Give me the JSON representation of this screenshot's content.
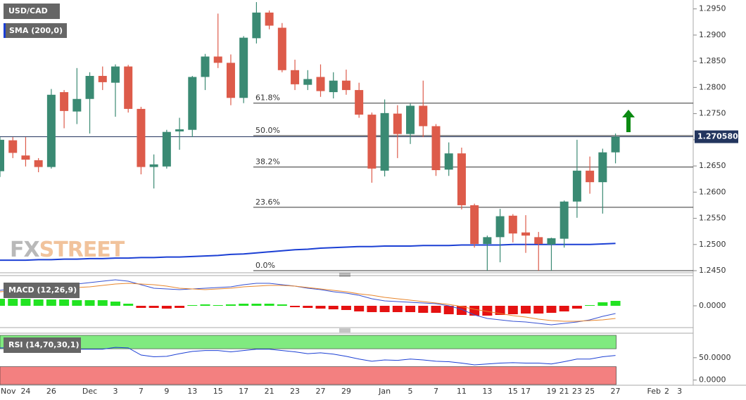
{
  "chart_data": [
    {
      "type": "candlestick",
      "title": "USD/CAD",
      "categories": [
        "Nov",
        null,
        "24",
        null,
        "26",
        null,
        null,
        "Dec",
        null,
        "3",
        null,
        "7",
        null,
        "9",
        null,
        "13",
        null,
        "15",
        null,
        "17",
        null,
        "21",
        null,
        "23",
        null,
        "27",
        null,
        "29",
        null,
        null,
        "Jan",
        null,
        "5",
        null,
        "7",
        null,
        "11",
        null,
        "13",
        null,
        "15",
        "17",
        null,
        "19",
        "21",
        "23",
        "25",
        null,
        "27",
        null,
        null,
        "Feb",
        "2",
        "3"
      ],
      "open": [
        1.264,
        1.2699,
        1.267,
        1.2661,
        1.2648,
        1.2791,
        1.2754,
        1.2778,
        1.2822,
        1.2809,
        1.284,
        1.2759,
        1.2648,
        1.2649,
        1.2716,
        1.2719,
        1.282,
        1.2859,
        1.2847,
        1.278,
        1.2894,
        1.2943,
        1.2914,
        1.2833,
        1.2805,
        1.282,
        1.2791,
        1.2813,
        1.2795,
        1.2748,
        1.2641,
        1.275,
        1.2711,
        1.2765,
        1.2726,
        1.2643,
        1.2674,
        1.2575,
        1.2501,
        1.2514,
        1.2555,
        1.2523,
        1.2514,
        1.25,
        1.2511,
        1.2582,
        1.2641,
        1.2619,
        1.2676,
        null,
        null,
        null,
        null,
        null
      ],
      "high": [
        1.2705,
        1.2705,
        1.2705,
        1.2665,
        1.2797,
        1.2795,
        1.2837,
        1.2829,
        1.284,
        1.2844,
        1.2843,
        1.2763,
        1.2672,
        1.2719,
        1.2742,
        1.2822,
        1.2864,
        1.2941,
        1.2863,
        1.2898,
        1.2963,
        1.2947,
        1.2923,
        1.2853,
        1.2833,
        1.2844,
        1.2829,
        1.2834,
        1.2809,
        1.2752,
        1.2777,
        1.2766,
        1.2769,
        1.2813,
        1.273,
        1.2695,
        1.2685,
        1.2578,
        1.2517,
        1.2568,
        1.2558,
        1.2556,
        1.2524,
        1.2513,
        1.2584,
        1.27,
        1.2668,
        1.2683,
        1.2712,
        null,
        null,
        null,
        null,
        null
      ],
      "low": [
        1.2629,
        1.2665,
        1.2649,
        1.2638,
        1.2645,
        1.2722,
        1.273,
        1.2712,
        1.2795,
        1.2744,
        1.2752,
        1.2634,
        1.2607,
        1.2645,
        1.2681,
        1.2705,
        1.2795,
        1.2837,
        1.2766,
        1.277,
        1.2884,
        1.2911,
        1.2829,
        1.2795,
        1.2795,
        1.2782,
        1.2779,
        1.2786,
        1.2742,
        1.2618,
        1.263,
        1.2665,
        1.2692,
        1.2705,
        1.2631,
        1.2631,
        1.2567,
        1.2494,
        1.245,
        1.2466,
        1.2504,
        1.2484,
        1.245,
        1.245,
        1.2494,
        1.2551,
        1.2597,
        1.2559,
        1.2655,
        null,
        null,
        null,
        null,
        null
      ],
      "close": [
        1.27,
        1.2675,
        1.2662,
        1.2648,
        1.2786,
        1.2755,
        1.2778,
        1.2822,
        1.281,
        1.284,
        1.2759,
        1.2648,
        1.2653,
        1.2715,
        1.272,
        1.282,
        1.2859,
        1.2847,
        1.278,
        1.2895,
        1.2943,
        1.2918,
        1.2833,
        1.2806,
        1.2816,
        1.2793,
        1.2813,
        1.2795,
        1.2748,
        1.2645,
        1.2751,
        1.2711,
        1.2765,
        1.2726,
        1.2642,
        1.2674,
        1.2575,
        1.2501,
        1.2514,
        1.2554,
        1.2521,
        1.2517,
        1.2501,
        1.2512,
        1.2582,
        1.2641,
        1.2619,
        1.2676,
        1.2706,
        null,
        null,
        null,
        null,
        null
      ],
      "up_color": "#3a8a73",
      "down_color": "#dd5b4a",
      "series": [
        {
          "name": "SMA (200,0)",
          "color": "#1b3fd4",
          "values": [
            1.247,
            1.247,
            1.247,
            1.2471,
            1.2471,
            1.2472,
            1.2472,
            1.2473,
            1.2473,
            1.2474,
            1.2474,
            1.2475,
            1.2475,
            1.2476,
            1.2476,
            1.2477,
            1.2478,
            1.2479,
            1.2481,
            1.2482,
            1.2484,
            1.2486,
            1.2488,
            1.249,
            1.2491,
            1.2493,
            1.2494,
            1.2495,
            1.2496,
            1.2496,
            1.2497,
            1.2497,
            1.2497,
            1.2498,
            1.2498,
            1.2498,
            1.2499,
            1.2499,
            1.2499,
            1.2499,
            1.25,
            1.25,
            1.25,
            1.25,
            1.25,
            1.25,
            1.25,
            1.2501,
            1.2502,
            null,
            null,
            null,
            null,
            null
          ]
        }
      ],
      "ylim": [
        1.2446,
        1.2967
      ],
      "yticks": [
        {
          "value": 1.245,
          "label": "1.2450"
        },
        {
          "value": 1.25,
          "label": "1.2500"
        },
        {
          "value": 1.255,
          "label": "1.2550"
        },
        {
          "value": 1.26,
          "label": "1.2600"
        },
        {
          "value": 1.265,
          "label": "1.2650"
        },
        {
          "value": 1.27,
          "label": "1.2700"
        },
        {
          "value": 1.275,
          "label": "1.2750"
        },
        {
          "value": 1.28,
          "label": "1.2800"
        },
        {
          "value": 1.285,
          "label": "1.2850"
        },
        {
          "value": 1.29,
          "label": "1.2900"
        },
        {
          "value": 1.295,
          "label": "1.2950"
        }
      ],
      "fib_levels": [
        {
          "value": 1.277,
          "label": "61.8%"
        },
        {
          "value": 1.2708,
          "label": "50.0%"
        },
        {
          "value": 1.2648,
          "label": "38.2%"
        },
        {
          "value": 1.2571,
          "label": "23.6%"
        },
        {
          "value": 1.245,
          "label": "0.0%"
        }
      ],
      "last_price": {
        "value": 1.27058,
        "label": "1.270580"
      },
      "watermark": {
        "prefix": "FX",
        "suffix": "STREET"
      }
    },
    {
      "type": "macd",
      "title": "MACD (12,26,9)",
      "lines": [
        {
          "color": "#3550d2",
          "values": [
            0.0022,
            0.0024,
            0.0025,
            0.0026,
            0.0027,
            0.0029,
            0.0031,
            0.0033,
            0.0035,
            0.0037,
            0.0035,
            0.003,
            0.0025,
            0.0024,
            0.0023,
            0.0024,
            0.0025,
            0.0026,
            0.0027,
            0.003,
            0.0032,
            0.0032,
            0.003,
            0.0028,
            0.0025,
            0.0023,
            0.002,
            0.0018,
            0.0015,
            0.001,
            0.0007,
            0.0006,
            0.0005,
            0.0004,
            0.0003,
            0.0,
            -0.0005,
            -0.0013,
            -0.0018,
            -0.002,
            -0.0022,
            -0.0023,
            -0.0025,
            -0.0027,
            -0.0025,
            -0.0023,
            -0.002,
            -0.0015,
            -0.0011,
            null,
            null,
            null,
            null,
            null
          ]
        },
        {
          "color": "#e8862c",
          "values": [
            0.002,
            0.0021,
            0.0022,
            0.0022,
            0.0023,
            0.0024,
            0.0026,
            0.0027,
            0.0029,
            0.0031,
            0.0032,
            0.0031,
            0.003,
            0.0028,
            0.0025,
            0.0024,
            0.0023,
            0.0024,
            0.0025,
            0.0027,
            0.0028,
            0.0029,
            0.0029,
            0.0028,
            0.0026,
            0.0024,
            0.0022,
            0.002,
            0.0017,
            0.0015,
            0.0012,
            0.001,
            0.0008,
            0.0006,
            0.0004,
            0.0002,
            -0.0001,
            -0.0005,
            -0.0008,
            -0.0011,
            -0.0014,
            -0.0016,
            -0.0019,
            -0.0021,
            -0.0022,
            -0.0022,
            -0.0021,
            -0.002,
            -0.0018,
            null,
            null,
            null,
            null,
            null
          ]
        }
      ],
      "histogram": {
        "up_color": "#22e322",
        "down_color": "#e51212",
        "values": [
          0.001,
          0.001,
          0.001,
          0.0009,
          0.0009,
          0.0009,
          0.0008,
          0.0008,
          0.0008,
          0.0006,
          0.0003,
          -0.0003,
          -0.0003,
          -0.0004,
          -0.0003,
          0.0001,
          0.0002,
          0.0001,
          0.0002,
          0.0003,
          0.0003,
          0.0003,
          0.0002,
          -0.0002,
          -0.0003,
          -0.0004,
          -0.0005,
          -0.0006,
          -0.0008,
          -0.0009,
          -0.0009,
          -0.0009,
          -0.0009,
          -0.001,
          -0.001,
          -0.0012,
          -0.0013,
          -0.0014,
          -0.0014,
          -0.0013,
          -0.0012,
          -0.0011,
          -0.0011,
          -0.001,
          -0.0008,
          -0.0004,
          0.0001,
          0.0005,
          0.0007,
          null,
          null,
          null,
          null,
          null
        ]
      },
      "ylim": [
        -0.003,
        0.0042
      ],
      "yticks": [
        {
          "value": 0,
          "label": "0.0000"
        }
      ]
    },
    {
      "type": "rsi",
      "title": "RSI (14,70,30,1)",
      "overbought": 70,
      "oversold": 30,
      "overbought_color": "#80ea80",
      "oversold_color": "#f38080",
      "lines": [
        {
          "color": "#1b3fd4",
          "values": [
            72,
            72,
            72,
            71,
            70,
            70,
            69,
            69,
            69,
            73,
            72,
            56,
            52,
            53,
            59,
            64,
            66,
            66,
            63,
            66,
            69,
            69,
            66,
            63,
            59,
            61,
            58,
            53,
            47,
            42,
            45,
            44,
            47,
            45,
            42,
            41,
            38,
            34,
            36,
            38,
            39,
            38,
            38,
            36,
            41,
            47,
            47,
            52,
            55,
            null,
            null,
            null,
            null,
            null
          ]
        }
      ],
      "ylim": [
        -10,
        100
      ],
      "yticks": [
        {
          "value": 50,
          "label": "50.0000"
        },
        {
          "value": 0,
          "label": "0.0000"
        }
      ]
    }
  ]
}
